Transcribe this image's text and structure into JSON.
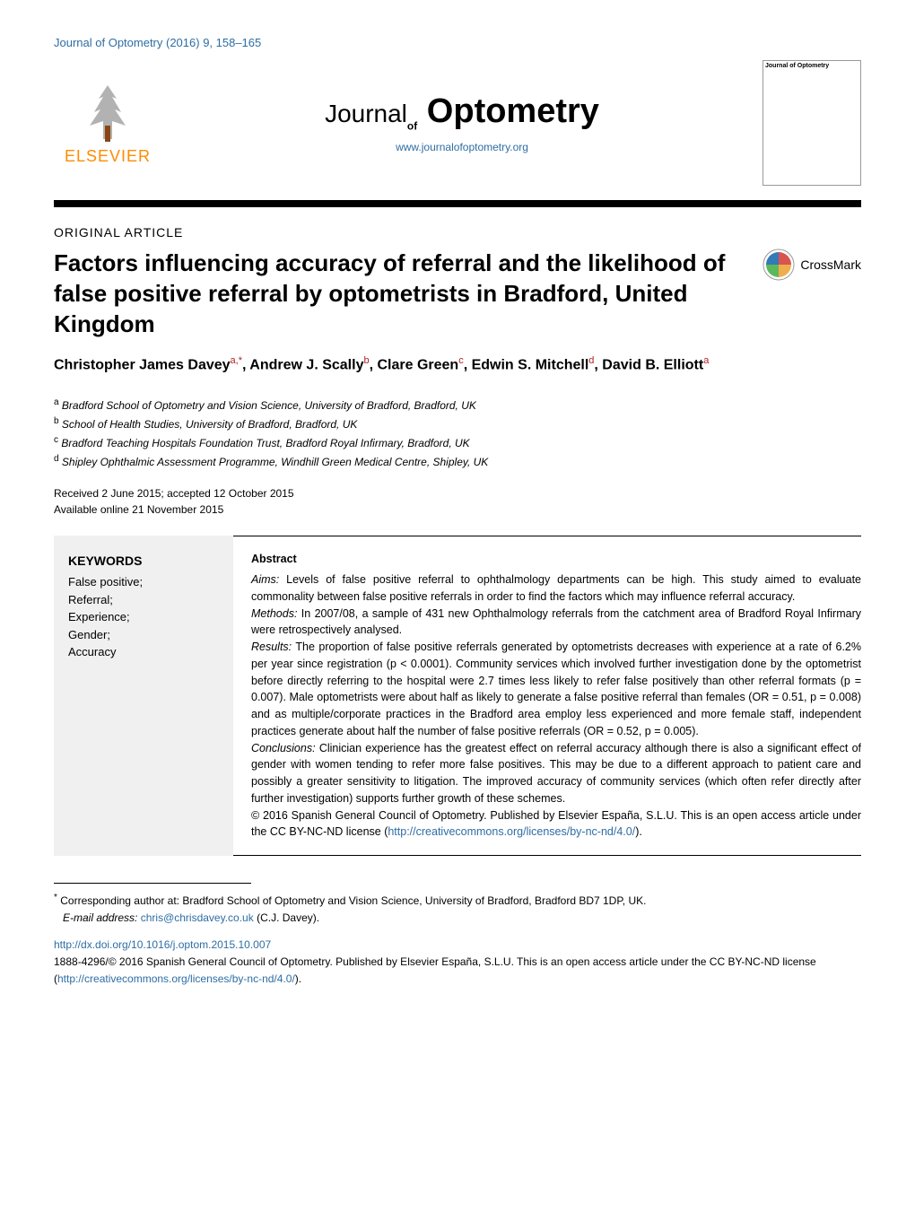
{
  "colors": {
    "link": "#2e6da4",
    "publisher_orange": "#ff8c00",
    "background": "#ffffff",
    "text": "#000000",
    "keyword_bg": "#f0f0f0",
    "masthead_rule": "#000000",
    "crossmark_red": "#d9534f",
    "crossmark_yellow": "#f0ad4e",
    "crossmark_blue": "#337ab7",
    "crossmark_green": "#5cb85c"
  },
  "header": {
    "journal_citation": "Journal of Optometry (2016) 9, 158–165",
    "publisher": "ELSEVIER",
    "journal_prefix": "Journal",
    "journal_of": "of",
    "journal_main": "Optometry",
    "journal_url": "www.journalofoptometry.org",
    "cover_thumb_title": "Journal of Optometry"
  },
  "article": {
    "type": "ORIGINAL ARTICLE",
    "title": "Factors influencing accuracy of referral and the likelihood of false positive referral by optometrists in Bradford, United Kingdom",
    "crossmark_label": "CrossMark",
    "authors_html": "Christopher James Davey<sup class='author-sup'>a,*</sup>, Andrew J. Scally<sup class='author-sup'>b</sup>, Clare Green<sup class='author-sup'>c</sup>, Edwin S. Mitchell<sup class='author-sup'>d</sup>, David B. Elliott<sup class='author-sup'>a</sup>",
    "affiliations": [
      {
        "sup": "a",
        "text": "Bradford School of Optometry and Vision Science, University of Bradford, Bradford, UK"
      },
      {
        "sup": "b",
        "text": "School of Health Studies, University of Bradford, Bradford, UK"
      },
      {
        "sup": "c",
        "text": "Bradford Teaching Hospitals Foundation Trust, Bradford Royal Infirmary, Bradford, UK"
      },
      {
        "sup": "d",
        "text": "Shipley Ophthalmic Assessment Programme, Windhill Green Medical Centre, Shipley, UK"
      }
    ],
    "received": "Received 2 June 2015; accepted 12 October 2015",
    "available": "Available online 21 November 2015"
  },
  "keywords": {
    "heading": "KEYWORDS",
    "items": "False positive;\nReferral;\nExperience;\nGender;\nAccuracy"
  },
  "abstract": {
    "heading": "Abstract",
    "sections": {
      "aims_label": "Aims:",
      "aims": "Levels of false positive referral to ophthalmology departments can be high. This study aimed to evaluate commonality between false positive referrals in order to find the factors which may influence referral accuracy.",
      "methods_label": "Methods:",
      "methods": "In 2007/08, a sample of 431 new Ophthalmology referrals from the catchment area of Bradford Royal Infirmary were retrospectively analysed.",
      "results_label": "Results:",
      "results": "The proportion of false positive referrals generated by optometrists decreases with experience at a rate of 6.2% per year since registration (p < 0.0001). Community services which involved further investigation done by the optometrist before directly referring to the hospital were 2.7 times less likely to refer false positively than other referral formats (p = 0.007). Male optometrists were about half as likely to generate a false positive referral than females (OR = 0.51, p = 0.008) and as multiple/corporate practices in the Bradford area employ less experienced and more female staff, independent practices generate about half the number of false positive referrals (OR = 0.52, p = 0.005).",
      "conclusions_label": "Conclusions:",
      "conclusions": "Clinician experience has the greatest effect on referral accuracy although there is also a significant effect of gender with women tending to refer more false positives. This may be due to a different approach to patient care and possibly a greater sensitivity to litigation. The improved accuracy of community services (which often refer directly after further investigation) supports further growth of these schemes.",
      "copyright_prefix": "© 2016 Spanish General Council of Optometry. Published by Elsevier España, S.L.U. This is an open access article under the CC BY-NC-ND license (",
      "copyright_link": "http://creativecommons.org/licenses/by-nc-nd/4.0/",
      "copyright_suffix": ")."
    }
  },
  "footnotes": {
    "corresponding_sup": "*",
    "corresponding": "Corresponding author at: Bradford School of Optometry and Vision Science, University of Bradford, Bradford BD7 1DP, UK.",
    "email_label": "E-mail address:",
    "email": "chris@chrisdavey.co.uk",
    "email_person": "(C.J. Davey).",
    "doi": "http://dx.doi.org/10.1016/j.optom.2015.10.007",
    "issn_prefix": "1888-4296/© 2016 Spanish General Council of Optometry. Published by Elsevier España, S.L.U. This is an open access article under the CC BY-NC-ND license (",
    "issn_link": "http://creativecommons.org/licenses/by-nc-nd/4.0/",
    "issn_suffix": ")."
  }
}
